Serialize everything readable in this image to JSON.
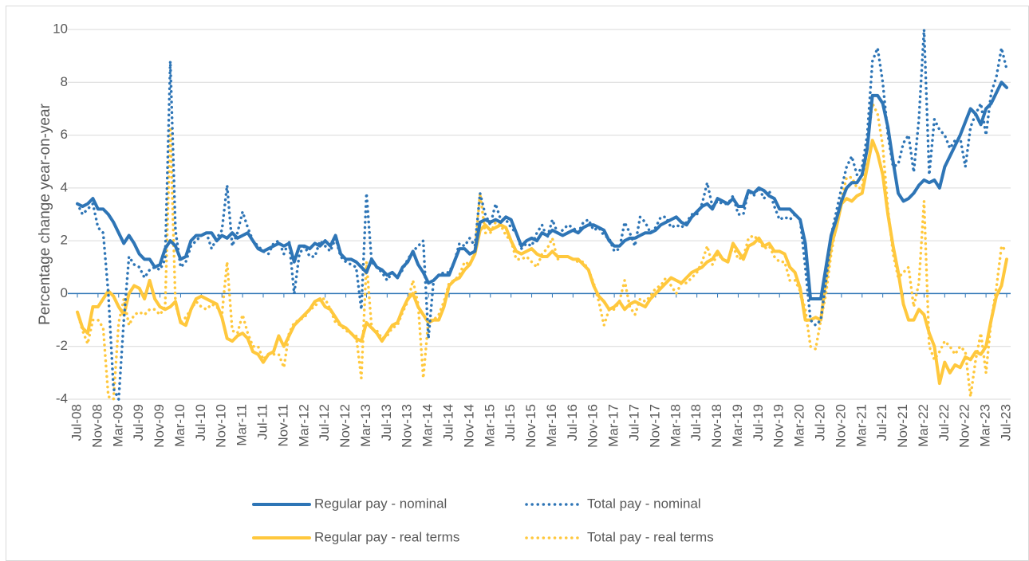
{
  "chart_data": {
    "type": "line",
    "y_label": "Percentage change year-on-year",
    "categories": [
      "Jul-08",
      null,
      null,
      null,
      "Nov-08",
      null,
      null,
      null,
      "Mar-09",
      null,
      null,
      null,
      "Jul-09",
      null,
      null,
      null,
      "Nov-09",
      null,
      null,
      null,
      "Mar-10",
      null,
      null,
      null,
      "Jul-10",
      null,
      null,
      null,
      "Nov-10",
      null,
      null,
      null,
      "Mar-11",
      null,
      null,
      null,
      "Jul-11",
      null,
      null,
      null,
      "Nov-11",
      null,
      null,
      null,
      "Mar-12",
      null,
      null,
      null,
      "Jul-12",
      null,
      null,
      null,
      "Nov-12",
      null,
      null,
      null,
      "Mar-13",
      null,
      null,
      null,
      "Jul-13",
      null,
      null,
      null,
      "Nov-13",
      null,
      null,
      null,
      "Mar-14",
      null,
      null,
      null,
      "Jul-14",
      null,
      null,
      null,
      "Nov-14",
      null,
      null,
      null,
      "Mar-15",
      null,
      null,
      null,
      "Jul-15",
      null,
      null,
      null,
      "Nov-15",
      null,
      null,
      null,
      "Mar-16",
      null,
      null,
      null,
      "Jul-16",
      null,
      null,
      null,
      "Nov-16",
      null,
      null,
      null,
      "Mar-17",
      null,
      null,
      null,
      "Jul-17",
      null,
      null,
      null,
      "Nov-17",
      null,
      null,
      null,
      "Mar-18",
      null,
      null,
      null,
      "Jul-18",
      null,
      null,
      null,
      "Nov-18",
      null,
      null,
      null,
      "Mar-19",
      null,
      null,
      null,
      "Jul-19",
      null,
      null,
      null,
      "Nov-19",
      null,
      null,
      null,
      "Mar-20",
      null,
      null,
      null,
      "Jul-20",
      null,
      null,
      null,
      "Nov-20",
      null,
      null,
      null,
      "Mar-21",
      null,
      null,
      null,
      "Jul-21",
      null,
      null,
      null,
      "Nov-21",
      null,
      null,
      null,
      "Mar-22",
      null,
      null,
      null,
      "Jul-22",
      null,
      null,
      null,
      "Nov-22",
      null,
      null,
      null,
      "Mar-23",
      null,
      null,
      null,
      "Jul-23"
    ],
    "series": [
      {
        "name": "Regular pay - nominal",
        "color": "#2e75b6",
        "style": "solid",
        "values": [
          3.4,
          3.3,
          3.4,
          3.6,
          3.2,
          3.2,
          3.0,
          2.7,
          2.3,
          1.9,
          2.2,
          1.9,
          1.5,
          1.3,
          1.3,
          1.0,
          1.1,
          1.7,
          2.0,
          1.8,
          1.3,
          1.4,
          2.0,
          2.2,
          2.2,
          2.3,
          2.3,
          2.0,
          2.2,
          2.1,
          2.3,
          2.1,
          2.2,
          2.3,
          2.0,
          1.7,
          1.6,
          1.7,
          1.8,
          1.9,
          1.8,
          1.9,
          1.2,
          1.8,
          1.8,
          1.7,
          1.9,
          1.8,
          2.0,
          1.8,
          2.2,
          1.5,
          1.3,
          1.3,
          1.2,
          1.0,
          0.8,
          1.3,
          1.0,
          0.9,
          0.7,
          0.8,
          0.6,
          1.0,
          1.2,
          1.6,
          1.1,
          0.8,
          0.4,
          0.5,
          0.7,
          0.7,
          0.7,
          1.2,
          1.7,
          1.7,
          1.5,
          1.6,
          2.7,
          2.8,
          2.7,
          2.8,
          2.7,
          2.9,
          2.8,
          2.3,
          1.8,
          2.0,
          2.1,
          2.0,
          2.3,
          2.2,
          2.4,
          2.3,
          2.2,
          2.3,
          2.4,
          2.3,
          2.5,
          2.6,
          2.6,
          2.5,
          2.4,
          2.0,
          1.8,
          1.8,
          2.0,
          2.1,
          2.1,
          2.2,
          2.3,
          2.3,
          2.4,
          2.6,
          2.7,
          2.8,
          2.9,
          2.7,
          2.6,
          2.9,
          3.1,
          3.3,
          3.4,
          3.2,
          3.6,
          3.5,
          3.4,
          3.6,
          3.3,
          3.3,
          3.9,
          3.8,
          4.0,
          3.9,
          3.7,
          3.6,
          3.2,
          3.2,
          3.2,
          3.0,
          2.8,
          1.9,
          -0.2,
          -0.2,
          -0.2,
          1.0,
          2.2,
          2.8,
          3.5,
          4.0,
          4.2,
          4.2,
          4.5,
          5.5,
          7.5,
          7.5,
          7.2,
          6.3,
          5.0,
          3.8,
          3.5,
          3.6,
          3.8,
          4.1,
          4.3,
          4.2,
          4.3,
          4.0,
          4.8,
          5.2,
          5.6,
          6.0,
          6.5,
          7.0,
          6.8,
          6.4,
          7.0,
          7.2,
          7.6,
          8.0,
          7.8
        ]
      },
      {
        "name": "Total pay - nominal",
        "color": "#2e75b6",
        "style": "dotted",
        "values": [
          3.4,
          3.0,
          3.2,
          3.4,
          2.5,
          2.3,
          0.0,
          -3.6,
          -4.0,
          -1.0,
          1.4,
          1.1,
          1.0,
          0.6,
          0.9,
          1.0,
          0.9,
          1.3,
          8.8,
          2.4,
          1.0,
          1.2,
          1.8,
          2.0,
          2.2,
          2.3,
          1.7,
          2.1,
          2.4,
          4.1,
          1.8,
          2.3,
          3.1,
          2.5,
          2.0,
          1.8,
          1.6,
          1.5,
          1.9,
          2.0,
          1.5,
          2.0,
          0.0,
          1.5,
          1.8,
          1.4,
          1.4,
          2.0,
          1.8,
          1.6,
          2.1,
          1.4,
          1.2,
          1.1,
          1.0,
          -0.6,
          3.8,
          1.2,
          1.0,
          0.8,
          0.5,
          0.8,
          0.6,
          0.9,
          1.3,
          1.6,
          1.8,
          2.0,
          -1.7,
          0.5,
          0.7,
          0.8,
          0.8,
          1.2,
          1.9,
          1.8,
          2.1,
          1.8,
          3.8,
          3.0,
          2.6,
          3.4,
          2.8,
          2.8,
          2.5,
          2.3,
          1.7,
          1.9,
          1.8,
          2.3,
          2.6,
          2.1,
          2.8,
          2.3,
          2.4,
          2.6,
          2.5,
          2.3,
          2.7,
          2.8,
          2.4,
          2.5,
          2.2,
          2.1,
          1.6,
          1.7,
          2.7,
          2.3,
          1.8,
          2.9,
          2.7,
          2.3,
          2.5,
          2.9,
          2.9,
          2.5,
          2.6,
          2.5,
          2.7,
          3.0,
          3.0,
          3.4,
          4.2,
          3.3,
          3.5,
          3.4,
          3.4,
          3.7,
          3.0,
          3.0,
          3.9,
          3.7,
          4.0,
          3.6,
          3.9,
          3.3,
          2.8,
          2.9,
          2.8,
          3.0,
          2.8,
          1.0,
          -1.0,
          -1.2,
          -1.0,
          0.5,
          2.2,
          3.1,
          4.0,
          4.8,
          5.2,
          4.5,
          4.8,
          6.0,
          8.8,
          9.3,
          8.0,
          6.0,
          4.8,
          4.9,
          5.7,
          6.0,
          4.6,
          6.6,
          10.0,
          4.5,
          6.6,
          6.2,
          6.0,
          5.5,
          5.8,
          5.9,
          4.8,
          6.3,
          6.8,
          7.2,
          6.0,
          7.6,
          8.2,
          9.3,
          8.5
        ]
      },
      {
        "name": "Regular pay - real terms",
        "color": "#ffc83d",
        "style": "solid",
        "values": [
          -0.7,
          -1.3,
          -1.5,
          -0.5,
          -0.5,
          -0.2,
          0.1,
          -0.1,
          -0.5,
          -0.8,
          0.0,
          0.3,
          0.2,
          -0.2,
          0.5,
          -0.2,
          -0.5,
          -0.6,
          -0.5,
          -0.3,
          -1.1,
          -1.2,
          -0.6,
          -0.2,
          -0.1,
          -0.2,
          -0.3,
          -0.4,
          -0.9,
          -1.7,
          -1.8,
          -1.6,
          -1.5,
          -1.7,
          -2.2,
          -2.3,
          -2.6,
          -2.3,
          -2.2,
          -1.6,
          -2.0,
          -1.6,
          -1.2,
          -1.0,
          -0.8,
          -0.6,
          -0.3,
          -0.2,
          -0.5,
          -0.6,
          -0.9,
          -1.2,
          -1.3,
          -1.5,
          -1.7,
          -1.8,
          -1.1,
          -1.3,
          -1.5,
          -1.8,
          -1.5,
          -1.2,
          -1.1,
          -0.6,
          -0.2,
          0.0,
          -0.5,
          -0.8,
          -1.1,
          -1.0,
          -1.0,
          -0.5,
          0.3,
          0.5,
          0.6,
          0.9,
          1.1,
          1.5,
          2.4,
          2.6,
          2.4,
          2.5,
          2.6,
          2.5,
          2.0,
          1.6,
          1.5,
          1.6,
          1.7,
          1.5,
          1.4,
          1.4,
          1.6,
          1.4,
          1.4,
          1.4,
          1.3,
          1.3,
          1.1,
          0.9,
          0.3,
          -0.1,
          -0.3,
          -0.6,
          -0.5,
          -0.3,
          -0.6,
          -0.4,
          -0.3,
          -0.4,
          -0.5,
          -0.2,
          0.0,
          0.2,
          0.4,
          0.6,
          0.5,
          0.4,
          0.6,
          0.8,
          0.9,
          1.0,
          1.2,
          1.3,
          1.6,
          1.3,
          1.2,
          1.9,
          1.6,
          1.3,
          1.8,
          1.9,
          2.1,
          1.8,
          1.9,
          1.6,
          1.6,
          1.5,
          1.0,
          0.8,
          0.2,
          -1.0,
          -1.0,
          -0.9,
          -1.0,
          0.5,
          1.8,
          2.5,
          3.4,
          3.6,
          3.5,
          3.7,
          3.8,
          4.8,
          5.8,
          5.3,
          4.5,
          3.0,
          1.8,
          0.8,
          -0.4,
          -1.0,
          -1.0,
          -0.6,
          -0.8,
          -1.5,
          -2.0,
          -3.4,
          -2.6,
          -3.0,
          -2.7,
          -2.8,
          -2.4,
          -2.5,
          -2.2,
          -2.3,
          -2.0,
          -1.0,
          -0.1,
          0.3,
          1.3
        ]
      },
      {
        "name": "Total pay - real terms",
        "color": "#ffc83d",
        "style": "dotted",
        "values": [
          -0.7,
          -1.4,
          -1.9,
          -1.0,
          -1.0,
          -1.3,
          -3.9,
          -4.0,
          -1.1,
          -0.2,
          -1.2,
          -0.8,
          -0.7,
          -0.8,
          -0.6,
          -0.6,
          -0.8,
          -0.5,
          6.3,
          -0.4,
          -1.1,
          -0.9,
          -0.6,
          -0.3,
          -0.5,
          -0.6,
          -0.4,
          -0.5,
          -0.8,
          1.2,
          -1.4,
          -1.5,
          -0.8,
          -1.5,
          -2.0,
          -2.0,
          -2.5,
          -2.3,
          -2.3,
          -2.3,
          -2.8,
          -1.5,
          -1.1,
          -1.0,
          -0.9,
          -0.6,
          -0.5,
          -0.2,
          -0.2,
          -0.6,
          -1.1,
          -1.2,
          -1.4,
          -1.5,
          -1.6,
          -3.2,
          1.2,
          -1.3,
          -1.4,
          -1.7,
          -1.6,
          -1.3,
          -1.2,
          -0.7,
          -0.3,
          0.5,
          -0.4,
          -3.2,
          -1.0,
          -1.0,
          -0.8,
          -0.3,
          0.4,
          0.5,
          0.7,
          1.2,
          1.1,
          1.6,
          3.8,
          2.3,
          2.3,
          2.7,
          2.6,
          2.2,
          2.0,
          1.3,
          1.3,
          1.4,
          1.2,
          1.0,
          1.5,
          1.7,
          2.1,
          1.3,
          1.4,
          1.4,
          1.3,
          1.2,
          1.2,
          0.9,
          0.4,
          -0.3,
          -1.2,
          -0.6,
          -0.6,
          -0.3,
          0.5,
          -0.5,
          -0.8,
          -0.2,
          -0.3,
          -0.1,
          0.2,
          0.3,
          0.6,
          0.3,
          0.0,
          0.4,
          0.4,
          0.6,
          0.8,
          1.2,
          1.8,
          1.1,
          1.5,
          1.3,
          1.2,
          1.8,
          1.3,
          1.4,
          2.1,
          2.2,
          2.0,
          1.7,
          1.8,
          1.4,
          1.2,
          1.2,
          0.5,
          0.5,
          0.1,
          -0.6,
          -2.0,
          -2.1,
          -1.0,
          0.0,
          1.5,
          2.6,
          3.6,
          4.4,
          4.4,
          4.0,
          4.0,
          5.6,
          7.2,
          6.8,
          5.6,
          3.2,
          1.5,
          0.6,
          0.8,
          1.0,
          -0.5,
          0.4,
          3.5,
          -2.0,
          -2.5,
          -2.2,
          -1.8,
          -2.0,
          -2.3,
          -2.0,
          -2.2,
          -3.9,
          -2.5,
          -1.5,
          -3.0,
          -1.0,
          0.2,
          1.8,
          1.6
        ]
      }
    ],
    "ylim": [
      -4,
      10
    ],
    "yticks": [
      -4,
      -2,
      0,
      2,
      4,
      6,
      8,
      10
    ],
    "grid": true,
    "legend": "bottom"
  }
}
